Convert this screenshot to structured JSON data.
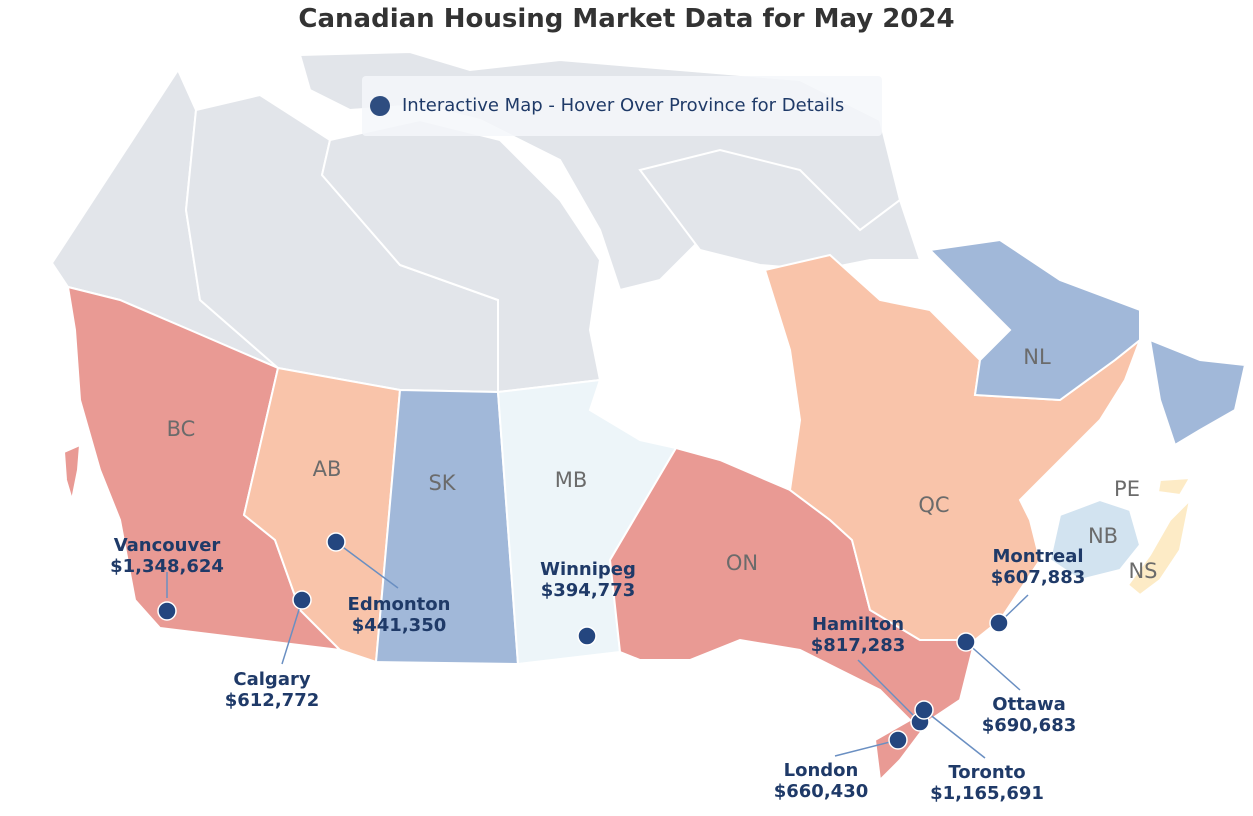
{
  "title": "Canadian Housing Market Data for May 2024",
  "legend": {
    "label": "Interactive Map - Hover Over Province for Details",
    "marker_color": "#2e4d80"
  },
  "colors": {
    "text_dark": "#1f3a68",
    "marker": "#24467f",
    "marker_stroke": "#ffffff",
    "leader_line": "#6a8fc2",
    "territory": "#e2e5ea",
    "border": "#ffffff"
  },
  "provinces": [
    {
      "code": "BC",
      "label": "BC",
      "fill": "#e99a94"
    },
    {
      "code": "AB",
      "label": "AB",
      "fill": "#f9c4aa"
    },
    {
      "code": "SK",
      "label": "SK",
      "fill": "#a1b8d9"
    },
    {
      "code": "MB",
      "label": "MB",
      "fill": "#edf5f9"
    },
    {
      "code": "ON",
      "label": "ON",
      "fill": "#e99a94"
    },
    {
      "code": "QC",
      "label": "QC",
      "fill": "#f9c4aa"
    },
    {
      "code": "NL",
      "label": "NL",
      "fill": "#a1b8d9"
    },
    {
      "code": "NB",
      "label": "NB",
      "fill": "#d2e3f0"
    },
    {
      "code": "PE",
      "label": "PE",
      "fill": "#fdebc6"
    },
    {
      "code": "NS",
      "label": "NS",
      "fill": "#fdebc6"
    }
  ],
  "cities": [
    {
      "name": "Vancouver",
      "price": "$1,348,624"
    },
    {
      "name": "Calgary",
      "price": "$612,772"
    },
    {
      "name": "Edmonton",
      "price": "$441,350"
    },
    {
      "name": "Winnipeg",
      "price": "$394,773"
    },
    {
      "name": "Hamilton",
      "price": "$817,283"
    },
    {
      "name": "Montreal",
      "price": "$607,883"
    },
    {
      "name": "Ottawa",
      "price": "$690,683"
    },
    {
      "name": "London",
      "price": "$660,430"
    },
    {
      "name": "Toronto",
      "price": "$1,165,691"
    }
  ]
}
